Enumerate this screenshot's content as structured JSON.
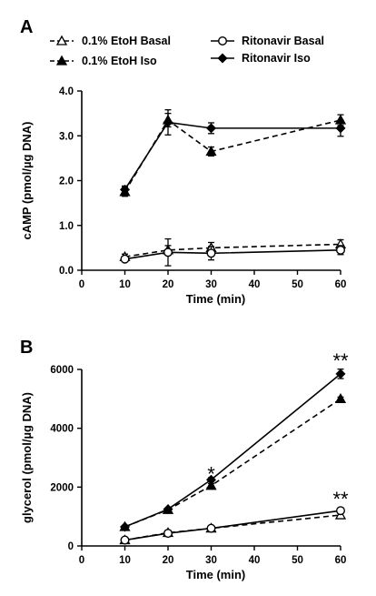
{
  "figure": {
    "panel_a_label": "A",
    "panel_b_label": "B"
  },
  "legend": [
    {
      "label": "0.1% EtoH Basal",
      "series": "etoh_basal"
    },
    {
      "label": "0.1% EtoH Iso",
      "series": "etoh_iso"
    },
    {
      "label": "Ritonavir Basal",
      "series": "rit_basal"
    },
    {
      "label": "Ritonavir Iso",
      "series": "rit_iso"
    }
  ],
  "chart_data": [
    {
      "panel": "A",
      "type": "line",
      "xlabel": "Time (min)",
      "ylabel": "cAMP (pmol/µg DNA)",
      "xlim": [
        0,
        60
      ],
      "ylim": [
        0,
        4
      ],
      "xticks": [
        "0",
        "10",
        "20",
        "30",
        "40",
        "50",
        "60"
      ],
      "yticks": [
        "0.0",
        "1.0",
        "2.0",
        "3.0",
        "4.0"
      ],
      "x": [
        10,
        20,
        30,
        60
      ],
      "series": [
        {
          "key": "etoh_basal",
          "name": "0.1% EtoH Basal",
          "line": "dashed",
          "marker": "open-triangle",
          "values": [
            0.3,
            0.45,
            0.5,
            0.58
          ],
          "err": [
            0.06,
            0.1,
            0.12,
            0.1
          ]
        },
        {
          "key": "etoh_iso",
          "name": "0.1% EtoH Iso",
          "line": "dashed",
          "marker": "filled-triangle",
          "values": [
            1.75,
            3.35,
            2.65,
            3.35
          ],
          "err": [
            0.1,
            0.15,
            0.1,
            0.12
          ]
        },
        {
          "key": "rit_basal",
          "name": "Ritonavir Basal",
          "line": "solid",
          "marker": "open-circle",
          "values": [
            0.25,
            0.4,
            0.38,
            0.45
          ],
          "err": [
            0.05,
            0.3,
            0.15,
            0.1
          ]
        },
        {
          "key": "rit_iso",
          "name": "Ritonavir Iso",
          "line": "solid",
          "marker": "filled-diamond",
          "values": [
            1.8,
            3.3,
            3.17,
            3.17
          ],
          "err": [
            0.08,
            0.28,
            0.12,
            0.18
          ]
        }
      ],
      "annotations": []
    },
    {
      "panel": "B",
      "type": "line",
      "xlabel": "Time (min)",
      "ylabel": "glycerol (pmol/µg DNA)",
      "xlim": [
        0,
        60
      ],
      "ylim": [
        0,
        6000
      ],
      "xticks": [
        "0",
        "10",
        "20",
        "30",
        "40",
        "50",
        "60"
      ],
      "yticks": [
        "0",
        "2000",
        "4000",
        "6000"
      ],
      "x": [
        10,
        20,
        30,
        60
      ],
      "series": [
        {
          "key": "etoh_basal",
          "name": "0.1% EtoH Basal",
          "line": "dashed",
          "marker": "open-triangle",
          "values": [
            200,
            450,
            600,
            1050
          ],
          "err": [
            40,
            40,
            50,
            70
          ]
        },
        {
          "key": "etoh_iso",
          "name": "0.1% EtoH Iso",
          "line": "dashed",
          "marker": "filled-triangle",
          "values": [
            650,
            1230,
            2050,
            5000
          ],
          "err": [
            40,
            50,
            70,
            60
          ]
        },
        {
          "key": "rit_basal",
          "name": "Ritonavir Basal",
          "line": "solid",
          "marker": "open-circle",
          "values": [
            200,
            430,
            600,
            1200
          ],
          "err": [
            40,
            50,
            50,
            70
          ]
        },
        {
          "key": "rit_iso",
          "name": "Ritonavir Iso",
          "line": "solid",
          "marker": "filled-diamond",
          "values": [
            650,
            1250,
            2250,
            5850
          ],
          "err": [
            40,
            50,
            70,
            160
          ]
        }
      ],
      "annotations": [
        {
          "text": "*",
          "x": 30,
          "y": 2700
        },
        {
          "text": "**",
          "x": 60,
          "y": 6550
        },
        {
          "text": "**",
          "x": 60,
          "y": 1850
        }
      ]
    }
  ]
}
